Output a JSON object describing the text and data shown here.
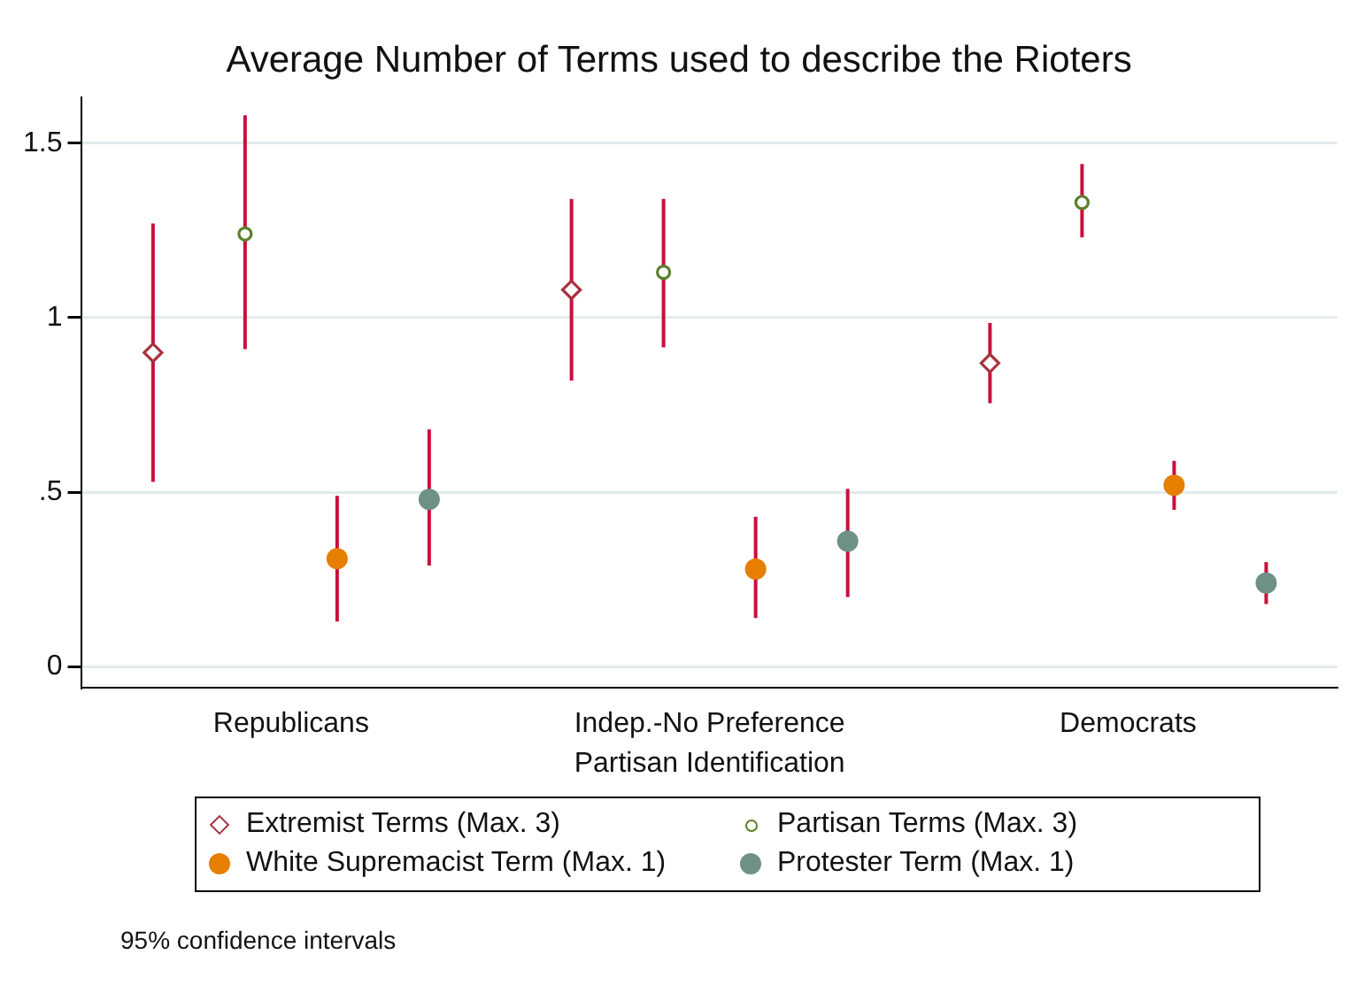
{
  "chart_data": {
    "type": "scatter",
    "title": "Average Number of Terms used to describe the Rioters",
    "xlabel": "Partisan Identification",
    "categories": [
      "Republicans",
      "Indep.-No Preference",
      "Democrats"
    ],
    "series": [
      {
        "name": "Extremist Terms (Max. 3)",
        "color": "#a8323e",
        "marker": "diamond",
        "values": [
          0.9,
          1.08,
          0.87
        ],
        "errors": [
          [
            0.53,
            1.27
          ],
          [
            0.82,
            1.34
          ],
          [
            0.755,
            0.985
          ]
        ]
      },
      {
        "name": "Partisan Terms (Max. 3)",
        "color": "#5c7f2a",
        "marker": "circle",
        "values": [
          1.24,
          1.13,
          1.33
        ],
        "errors": [
          [
            0.91,
            1.58
          ],
          [
            0.915,
            1.34
          ],
          [
            1.23,
            1.44
          ]
        ]
      },
      {
        "name": "White Supremacist Term (Max. 1)",
        "color": "#e67e00",
        "marker": "circle",
        "values": [
          0.31,
          0.28,
          0.52
        ],
        "errors": [
          [
            0.13,
            0.49
          ],
          [
            0.14,
            0.43
          ],
          [
            0.45,
            0.59
          ]
        ]
      },
      {
        "name": "Protester Term (Max. 1)",
        "color": "#6e9187",
        "marker": "circle",
        "values": [
          0.48,
          0.36,
          0.24
        ],
        "errors": [
          [
            0.29,
            0.68
          ],
          [
            0.2,
            0.51
          ],
          [
            0.18,
            0.3
          ]
        ]
      }
    ],
    "ylim": [
      -0.06,
      1.63
    ],
    "yticks": [
      0,
      {
        "value": 0.5,
        "label": ".5"
      },
      1,
      1.5
    ],
    "grid": "y",
    "legend": "bottom",
    "annotations": [
      "95% confidence intervals"
    ]
  }
}
